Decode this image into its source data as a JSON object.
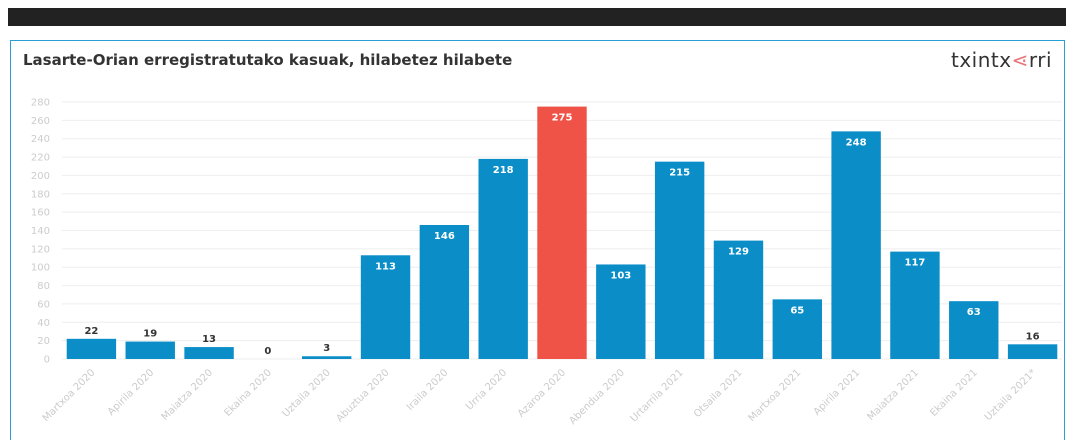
{
  "header": {
    "brand_text_before": "txintx",
    "brand_mark": "⋖",
    "brand_text_after": "rri"
  },
  "chart_data": {
    "type": "bar",
    "title": "Lasarte-Orian erregistratutako kasuak, hilabetez hilabete",
    "categories": [
      "Martxoa 2020",
      "Apirila 2020",
      "Maiatza 2020",
      "Ekaina 2020",
      "Uztaila 2020",
      "Abuztua 2020",
      "Iraila 2020",
      "Urria 2020",
      "Azaroa 2020",
      "Abendua 2020",
      "Urtarrila 2021",
      "Otsaila 2021",
      "Martxoa 2021",
      "Apirila 2021",
      "Maiatza 2021",
      "Ekaina 2021",
      "Uztaila 2021*"
    ],
    "values": [
      22,
      19,
      13,
      0,
      3,
      113,
      146,
      218,
      275,
      103,
      215,
      129,
      65,
      248,
      117,
      63,
      16
    ],
    "ylim": [
      0,
      280
    ],
    "yticks": [
      0,
      20,
      40,
      60,
      80,
      100,
      120,
      140,
      160,
      180,
      200,
      220,
      240,
      260,
      280
    ],
    "highlight_index": 8,
    "colors": {
      "bar": "#0b8ec8",
      "highlight": "#ef5348",
      "grid": "#eeeeee",
      "tick": "#cccccc"
    },
    "grid": true,
    "legend": "none"
  }
}
